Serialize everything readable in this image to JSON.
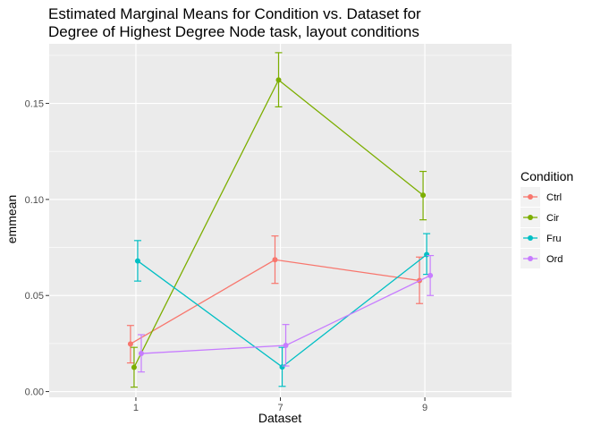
{
  "chart_data": {
    "type": "line",
    "title": [
      "Estimated Marginal Means for Condition vs. Dataset for",
      "Degree of Highest Degree Node task, layout conditions"
    ],
    "xlabel": "Dataset",
    "ylabel": "emmean",
    "categories": [
      "1",
      "7",
      "9"
    ],
    "ylim": [
      -0.003,
      0.181
    ],
    "yticks": [
      0.0,
      0.05,
      0.1,
      0.15
    ],
    "ytick_labels": [
      "0.00",
      "0.05",
      "0.10",
      "0.15"
    ],
    "grid": true,
    "legend": {
      "title": "Condition",
      "position": "right"
    },
    "series": [
      {
        "name": "Ctrl",
        "color": "#F8766D",
        "dodge": -0.375,
        "values": [
          0.0248,
          0.0686,
          0.0578
        ],
        "lower": [
          0.0149,
          0.0563,
          0.0458
        ],
        "upper": [
          0.0344,
          0.081,
          0.07
        ]
      },
      {
        "name": "Cir",
        "color": "#7CAE00",
        "dodge": -0.125,
        "values": [
          0.0126,
          0.1622,
          0.1022
        ],
        "lower": [
          0.0023,
          0.1482,
          0.0894
        ],
        "upper": [
          0.023,
          0.1764,
          0.1146
        ]
      },
      {
        "name": "Fru",
        "color": "#00BFC4",
        "dodge": 0.125,
        "values": [
          0.068,
          0.0128,
          0.0713
        ],
        "lower": [
          0.0575,
          0.0027,
          0.061
        ],
        "upper": [
          0.0786,
          0.023,
          0.0822
        ]
      },
      {
        "name": "Ord",
        "color": "#C77CFF",
        "dodge": 0.375,
        "values": [
          0.0198,
          0.024,
          0.0604
        ],
        "lower": [
          0.0102,
          0.0133,
          0.05
        ],
        "upper": [
          0.0296,
          0.0349,
          0.0708
        ]
      }
    ]
  }
}
